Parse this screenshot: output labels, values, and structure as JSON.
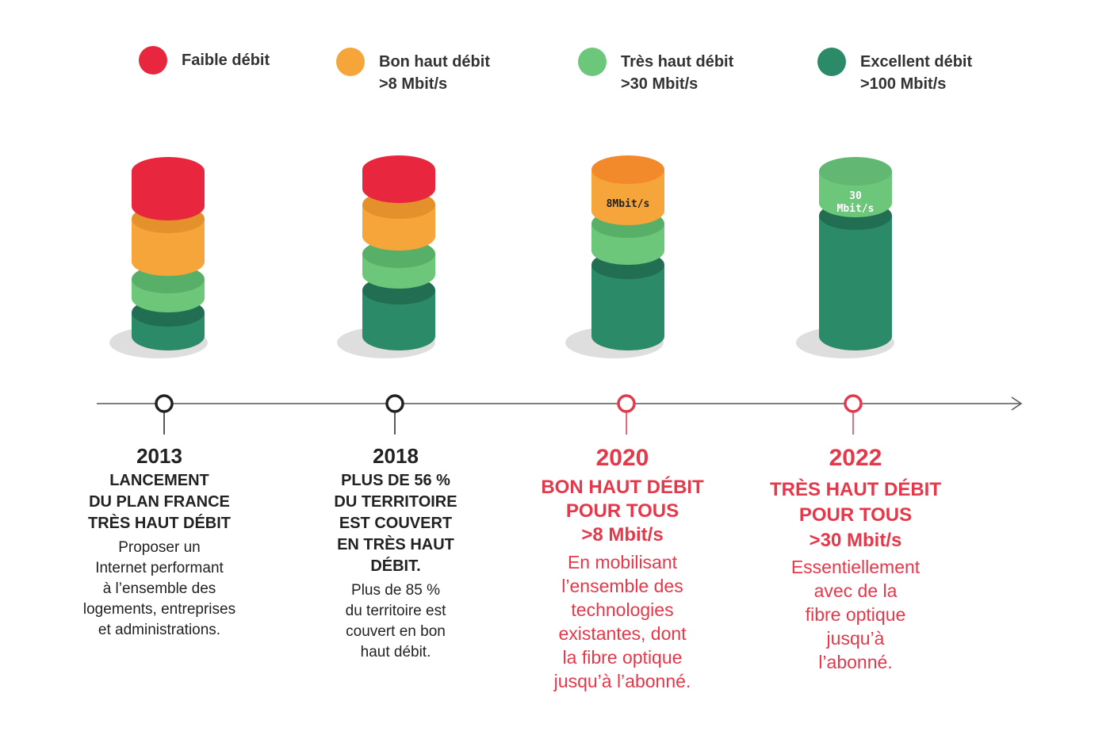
{
  "legend": [
    {
      "color": "#e8263d",
      "label": "Faible débit",
      "sub": ""
    },
    {
      "color": "#f5a53a",
      "label": "Bon haut débit",
      "sub": ">8 Mbit/s"
    },
    {
      "color": "#6cc77a",
      "label": "Très haut débit",
      "sub": ">30 Mbit/s"
    },
    {
      "color": "#2b8b68",
      "label": "Excellent débit",
      "sub": ">100 Mbit/s"
    }
  ],
  "cylinder_labels": {
    "c2020": "8Mbit/s",
    "c2022_line1": "30",
    "c2022_line2": "Mbit/s"
  },
  "milestones": [
    {
      "year": "2013",
      "headline": [
        "LANCEMENT",
        "DU PLAN FRANCE",
        "TRÈS HAUT DÉBIT"
      ],
      "desc": [
        "Proposer un",
        "Internet performant",
        "à l’ensemble des",
        "logements, entreprises",
        "et administrations."
      ]
    },
    {
      "year": "2018",
      "headline": [
        "PLUS DE 56 %",
        "DU TERRITOIRE",
        "EST COUVERT",
        "EN TRÈS HAUT",
        "DÉBIT."
      ],
      "desc": [
        "Plus de 85 %",
        "du territoire est",
        "couvert en bon",
        "haut débit."
      ]
    },
    {
      "year": "2020",
      "headline": [
        "BON HAUT DÉBIT",
        "POUR TOUS",
        ">8 Mbit/s"
      ],
      "desc": [
        "En mobilisant",
        "l’ensemble des",
        "technologies",
        "existantes, dont",
        "la fibre optique",
        "jusqu’à l’abonné."
      ]
    },
    {
      "year": "2022",
      "headline": [
        "TRÈS HAUT DÉBIT",
        "POUR TOUS",
        ">30 Mbit/s"
      ],
      "desc": [
        "Essentiellement",
        "avec de la",
        "fibre optique",
        "jusqu’à",
        "l’abonné."
      ]
    }
  ],
  "colors": {
    "red": "#e8263d",
    "orange": "#f5a53a",
    "lightgreen": "#6cc77a",
    "darkgreen": "#2b8b68",
    "accent_text": "#e5384b"
  }
}
